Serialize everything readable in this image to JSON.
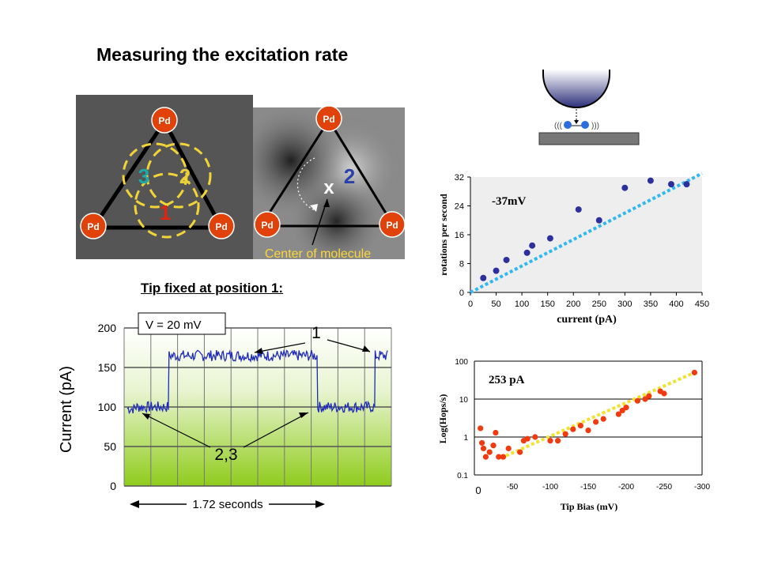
{
  "slide": {
    "title": "Measuring the excitation rate",
    "subtitle": "Tip fixed at position 1:"
  },
  "triangle_left": {
    "corner_label": "Pd",
    "positions": [
      "3",
      "2",
      "1"
    ]
  },
  "triangle_right": {
    "corner_label": "Pd",
    "position": "2",
    "mark": "x",
    "caption": "Center of molecule"
  },
  "tip_schematic": {
    "left_waves": "(((",
    "right_waves": ")))"
  },
  "chart_data": [
    {
      "type": "line",
      "ylabel": "Current (pA)",
      "yticks": [
        "0",
        "50",
        "100",
        "150",
        "200"
      ],
      "ylim": [
        0,
        200
      ],
      "legend": "V = 20 mV",
      "annotations": [
        "1",
        "2,3"
      ],
      "duration_label": "1.72 seconds",
      "x_segments": [
        0.0,
        0.03,
        0.03,
        0.16,
        0.16,
        0.73,
        0.73,
        0.95,
        0.95,
        1.0
      ],
      "levels": [
        {
          "t0": 0.0,
          "t1": 0.03,
          "value": 98
        },
        {
          "t0": 0.03,
          "t1": 0.16,
          "value": 100
        },
        {
          "t0": 0.16,
          "t1": 0.73,
          "value": 165
        },
        {
          "t0": 0.73,
          "t1": 0.95,
          "value": 100
        },
        {
          "t0": 0.95,
          "t1": 1.0,
          "value": 165
        }
      ],
      "grid": true
    },
    {
      "type": "scatter",
      "title": "-37mV",
      "xlabel": "current (pA)",
      "ylabel": "rotations per second",
      "xlim": [
        0,
        450
      ],
      "ylim": [
        0,
        32
      ],
      "xticks": [
        "0",
        "50",
        "100",
        "150",
        "200",
        "250",
        "300",
        "350",
        "400",
        "450"
      ],
      "yticks": [
        "0",
        "8",
        "16",
        "24",
        "32"
      ],
      "points": [
        [
          25,
          4
        ],
        [
          50,
          6
        ],
        [
          70,
          9
        ],
        [
          110,
          11
        ],
        [
          120,
          13
        ],
        [
          155,
          15
        ],
        [
          210,
          23
        ],
        [
          250,
          20
        ],
        [
          300,
          29
        ],
        [
          350,
          31
        ],
        [
          390,
          30
        ],
        [
          420,
          30
        ]
      ],
      "fit": [
        [
          0,
          0
        ],
        [
          450,
          33
        ]
      ]
    },
    {
      "type": "scatter",
      "title": "253 pA",
      "xlabel": "Tip Bias (mV)",
      "ylabel": "Log(Hops/s)",
      "xticks": [
        "0",
        "-50",
        "-100",
        "-150",
        "-200",
        "-250",
        "-300"
      ],
      "yticks": [
        "0.1",
        "1",
        "10",
        "100"
      ],
      "xlim": [
        0,
        -300
      ],
      "points": [
        [
          -8,
          1.7
        ],
        [
          -10,
          0.7
        ],
        [
          -12,
          0.5
        ],
        [
          -15,
          0.3
        ],
        [
          -20,
          0.4
        ],
        [
          -25,
          0.6
        ],
        [
          -28,
          1.3
        ],
        [
          -32,
          0.3
        ],
        [
          -38,
          0.3
        ],
        [
          -45,
          0.5
        ],
        [
          -60,
          0.4
        ],
        [
          -65,
          0.8
        ],
        [
          -70,
          0.9
        ],
        [
          -80,
          1.0
        ],
        [
          -100,
          0.8
        ],
        [
          -110,
          0.8
        ],
        [
          -120,
          1.2
        ],
        [
          -130,
          1.6
        ],
        [
          -140,
          2.0
        ],
        [
          -150,
          1.5
        ],
        [
          -160,
          2.5
        ],
        [
          -170,
          3.0
        ],
        [
          -190,
          4.0
        ],
        [
          -195,
          5.0
        ],
        [
          -200,
          6.0
        ],
        [
          -215,
          9.0
        ],
        [
          -225,
          10.0
        ],
        [
          -230,
          12.0
        ],
        [
          -245,
          16.0
        ],
        [
          -250,
          14.0
        ],
        [
          -290,
          50.0
        ]
      ],
      "fit_log": [
        [
          -35,
          0.28
        ],
        [
          -290,
          50
        ]
      ]
    }
  ]
}
